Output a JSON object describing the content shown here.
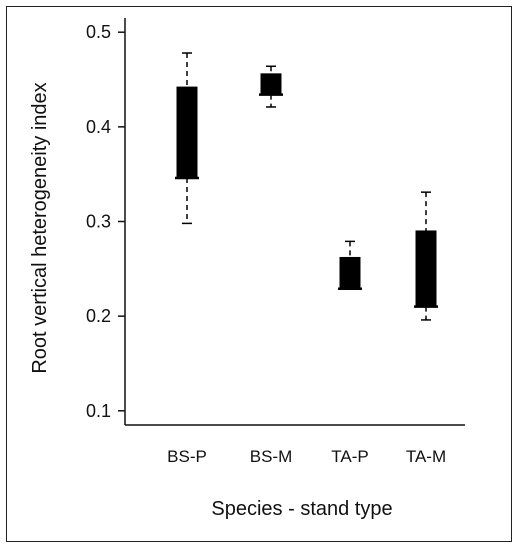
{
  "chart_data": {
    "type": "box",
    "title": "",
    "xlabel": "Species - stand type",
    "ylabel": "Root vertical heterogeneity  index",
    "ylim": [
      0.085,
      0.515
    ],
    "yticks": [
      0.1,
      0.2,
      0.3,
      0.4,
      0.5
    ],
    "ytick_labels": [
      "0.1",
      "0.2",
      "0.3",
      "0.4",
      "0.5"
    ],
    "categories": [
      "BS-P",
      "BS-M",
      "TA-P",
      "TA-M"
    ],
    "boxes": [
      {
        "category": "BS-P",
        "whisker_low": 0.298,
        "q1": 0.346,
        "median": 0.346,
        "q3": 0.442,
        "whisker_high": 0.478
      },
      {
        "category": "BS-M",
        "whisker_low": 0.421,
        "q1": 0.434,
        "median": 0.434,
        "q3": 0.456,
        "whisker_high": 0.464
      },
      {
        "category": "TA-P",
        "whisker_low": 0.229,
        "q1": 0.229,
        "median": 0.229,
        "q3": 0.262,
        "whisker_high": 0.279
      },
      {
        "category": "TA-M",
        "whisker_low": 0.196,
        "q1": 0.21,
        "median": 0.21,
        "q3": 0.29,
        "whisker_high": 0.331
      }
    ],
    "grid": false,
    "legend": "none",
    "box_color": "#000000"
  }
}
